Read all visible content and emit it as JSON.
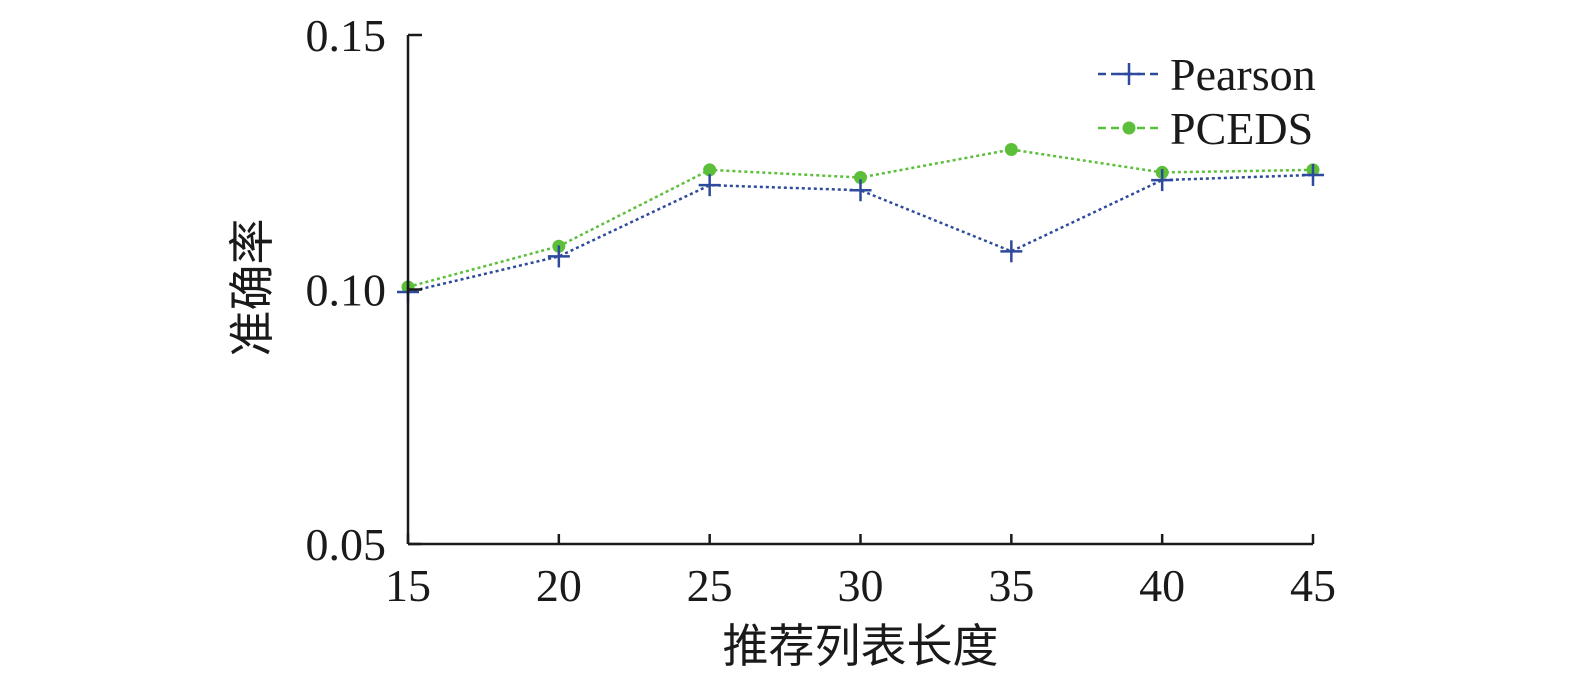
{
  "chart_data": {
    "type": "line",
    "title": "",
    "xlabel": "推荐列表长度",
    "ylabel": "准确率",
    "x": [
      15,
      20,
      25,
      30,
      35,
      40,
      45
    ],
    "x_tick_labels": [
      "15",
      "20",
      "25",
      "30",
      "35",
      "40",
      "45"
    ],
    "y_tick_labels": [
      "0.05",
      "0.10",
      "0.15"
    ],
    "y_ticks": [
      0.05,
      0.1,
      0.15
    ],
    "xlim": [
      15,
      45
    ],
    "ylim": [
      0.05,
      0.15
    ],
    "grid": false,
    "legend_position": "top-right",
    "series": [
      {
        "name": "Pearson",
        "values": [
          0.0995,
          0.1065,
          0.1205,
          0.1195,
          0.1075,
          0.1215,
          0.1225
        ],
        "color": "#2e4a9c",
        "marker": "plus",
        "line_style": "dotted"
      },
      {
        "name": "PCEDS",
        "values": [
          0.1005,
          0.1085,
          0.1235,
          0.122,
          0.1275,
          0.123,
          0.1235
        ],
        "color": "#5cbf3a",
        "marker": "circle",
        "line_style": "dotted"
      }
    ]
  }
}
